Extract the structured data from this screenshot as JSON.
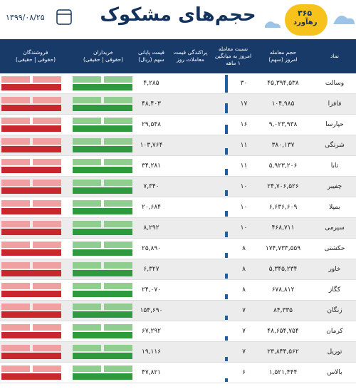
{
  "header": {
    "title": "حجم‌های مشکوک",
    "date": "۱۳۹۹/۰۸/۲۵",
    "logo_number": "۳۶۵",
    "logo_name": "رهآورد"
  },
  "columns": [
    {
      "lines": [
        "نماد"
      ]
    },
    {
      "lines": [
        "حجم معامله",
        "امروز (سهم)"
      ]
    },
    {
      "lines": [
        "نسبت معامله",
        "امروز به میانگین",
        "۱ ماهه"
      ]
    },
    {
      "lines": [
        "پراکندگی قیمت",
        "معاملات روز"
      ]
    },
    {
      "lines": [
        "قیمت پایانی",
        "سهم (ریال)"
      ]
    },
    {
      "lines": [
        "خریداران",
        "(حقوقی | حقیقی)"
      ]
    },
    {
      "lines": [
        "فروشندگان",
        "(حقوقی | حقیقی)"
      ]
    }
  ],
  "rows": [
    [
      "وسالت",
      "۴۵,۳۹۴,۵۳۸",
      "۳۰",
      "۴,۲۸۵"
    ],
    [
      "فافزا",
      "۱۰۴,۹۸۵",
      "۱۷",
      "۴۸,۴۰۳"
    ],
    [
      "حپارسا",
      "۹,۰۲۳,۹۳۸",
      "۱۶",
      "۲۹,۵۴۸"
    ],
    [
      "شرنگی",
      "۳۸۰,۱۳۷",
      "۱۱",
      "۱۰۳,۷۶۴"
    ],
    [
      "تابا",
      "۵,۹۲۳,۲۰۶",
      "۱۱",
      "۳۴,۲۸۱"
    ],
    [
      "چفیبر",
      "۲۴,۷۰۶,۵۲۶",
      "۱۰",
      "۷,۳۴۰"
    ],
    [
      "بمپلا",
      "۶,۶۳۶,۶۰۹",
      "۱۰",
      "۲۰,۶۸۴"
    ],
    [
      "سپرمی",
      "۴۶۸,۷۱۱",
      "۱۰",
      "۸,۲۹۲"
    ],
    [
      "حکشتی",
      "۱۷۴,۷۳۳,۵۵۹",
      "۸",
      "۲۵,۸۹۰"
    ],
    [
      "خاور",
      "۵,۳۴۵,۲۳۴",
      "۸",
      "۶,۳۲۷"
    ],
    [
      "کگاز",
      "۶۷۸,۸۱۲",
      "۸",
      "۲۴,۰۷۰"
    ],
    [
      "زنگان",
      "۸۴,۳۳۵",
      "۷",
      "۱۵۴,۶۹۰"
    ],
    [
      "کرمان",
      "۴۸,۶۵۴,۷۵۴",
      "۷",
      "۶۷,۲۹۲"
    ],
    [
      "توریل",
      "۲۳,۸۴۴,۵۶۲",
      "۷",
      "۱۹,۱۱۶"
    ],
    [
      "بالاس",
      "۱,۵۲۱,۴۴۴",
      "۶",
      "۴۷,۸۲۱"
    ]
  ]
}
